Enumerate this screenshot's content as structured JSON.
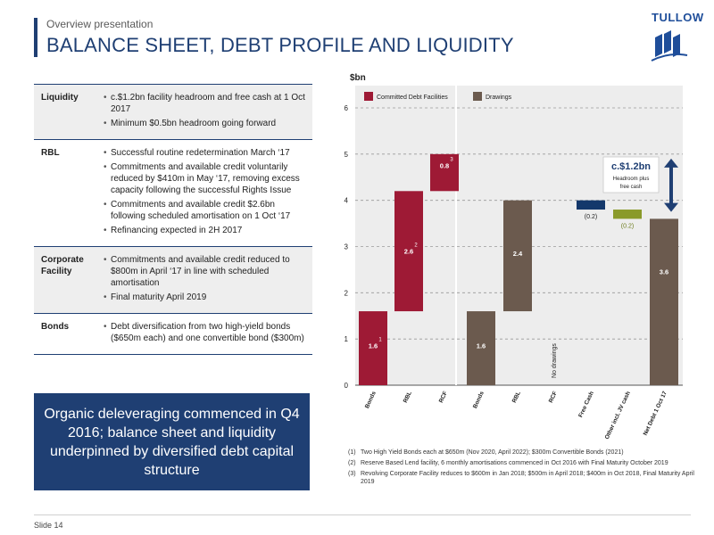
{
  "header": {
    "subtitle": "Overview presentation",
    "title": "BALANCE SHEET, DEBT PROFILE AND LIQUIDITY",
    "logo_text": "TULLOW"
  },
  "table": [
    {
      "label": "Liquidity",
      "bullets": [
        "c.$1.2bn facility headroom and free cash at 1 Oct 2017",
        "Minimum $0.5bn headroom going forward"
      ]
    },
    {
      "label": "RBL",
      "bullets": [
        "Successful routine redetermination March ‘17",
        "Commitments and available credit voluntarily reduced by $410m in May ‘17, removing excess capacity following the successful Rights Issue",
        "Commitments and available credit $2.6bn following scheduled amortisation on 1 Oct ‘17",
        "Refinancing expected in 2H 2017"
      ]
    },
    {
      "label": "Corporate Facility",
      "bullets": [
        "Commitments and available credit reduced to $800m in April ‘17 in line with scheduled amortisation",
        "Final maturity April 2019"
      ]
    },
    {
      "label": "Bonds",
      "bullets": [
        "Debt diversification from two high-yield bonds ($650m each) and one convertible bond ($300m)"
      ]
    }
  ],
  "callout": "Organic deleveraging commenced in Q4 2016; balance sheet and liquidity underpinned by diversified debt capital structure",
  "chart_data": {
    "type": "bar",
    "subtype": "waterfall",
    "ylabel": "$bn",
    "ylim": [
      0,
      6
    ],
    "yticks": [
      0,
      1,
      2,
      3,
      4,
      5,
      6
    ],
    "grid": true,
    "legend_position": "top",
    "legend": [
      {
        "name": "Committed Debt Facilities",
        "color": "#9e1a35"
      },
      {
        "name": "Drawings",
        "color": "#6b5a4e"
      }
    ],
    "groups": [
      {
        "name": "Committed Debt Facilities",
        "color": "#9e1a35",
        "bars": [
          {
            "category": "Bonds",
            "base": 0,
            "value": 1.6,
            "label": "1.6",
            "footnote": "1"
          },
          {
            "category": "RBL",
            "base": 1.6,
            "value": 2.6,
            "label": "2.6",
            "footnote": "2"
          },
          {
            "category": "RCF",
            "base": 4.2,
            "value": 0.8,
            "label": "0.8",
            "footnote": "3"
          }
        ]
      },
      {
        "name": "Drawings",
        "color": "#6b5a4e",
        "bars": [
          {
            "category": "Bonds",
            "base": 0,
            "value": 1.6,
            "label": "1.6"
          },
          {
            "category": "RBL",
            "base": 1.6,
            "value": 2.4,
            "label": "2.4"
          },
          {
            "category": "RCF",
            "base": 0,
            "value": 0,
            "label": "",
            "note": "No drawings"
          },
          {
            "category": "Free Cash",
            "base": 3.8,
            "value": 0.2,
            "label": "(0.2)",
            "color": "#14386b"
          },
          {
            "category": "Other incl. JV cash",
            "base": 3.6,
            "value": 0.2,
            "label": "(0.2)",
            "color": "#8a9a2a"
          },
          {
            "category": "Net Debt 1 Oct 17",
            "base": 0,
            "value": 3.6,
            "label": "3.6"
          }
        ]
      }
    ],
    "annotation": {
      "title": "c.$1.2bn",
      "text": "Headroom plus free cash",
      "from": 3.6,
      "to": 5.0
    }
  },
  "footnotes": [
    {
      "num": "(1)",
      "text": "Two High Yield Bonds each at $650m (Nov 2020, April 2022); $300m Convertible Bonds (2021)"
    },
    {
      "num": "(2)",
      "text": "Reserve Based Lend facility, 6 monthly amortisations commenced in Oct 2016 with Final Maturity October 2019"
    },
    {
      "num": "(3)",
      "text": "Revolving Corporate Facility reduces to $600m in Jan 2018; $500m in April 2018; $400m in Oct 2018, Final Maturity April 2019"
    }
  ],
  "footer": {
    "slide": "Slide 14"
  }
}
